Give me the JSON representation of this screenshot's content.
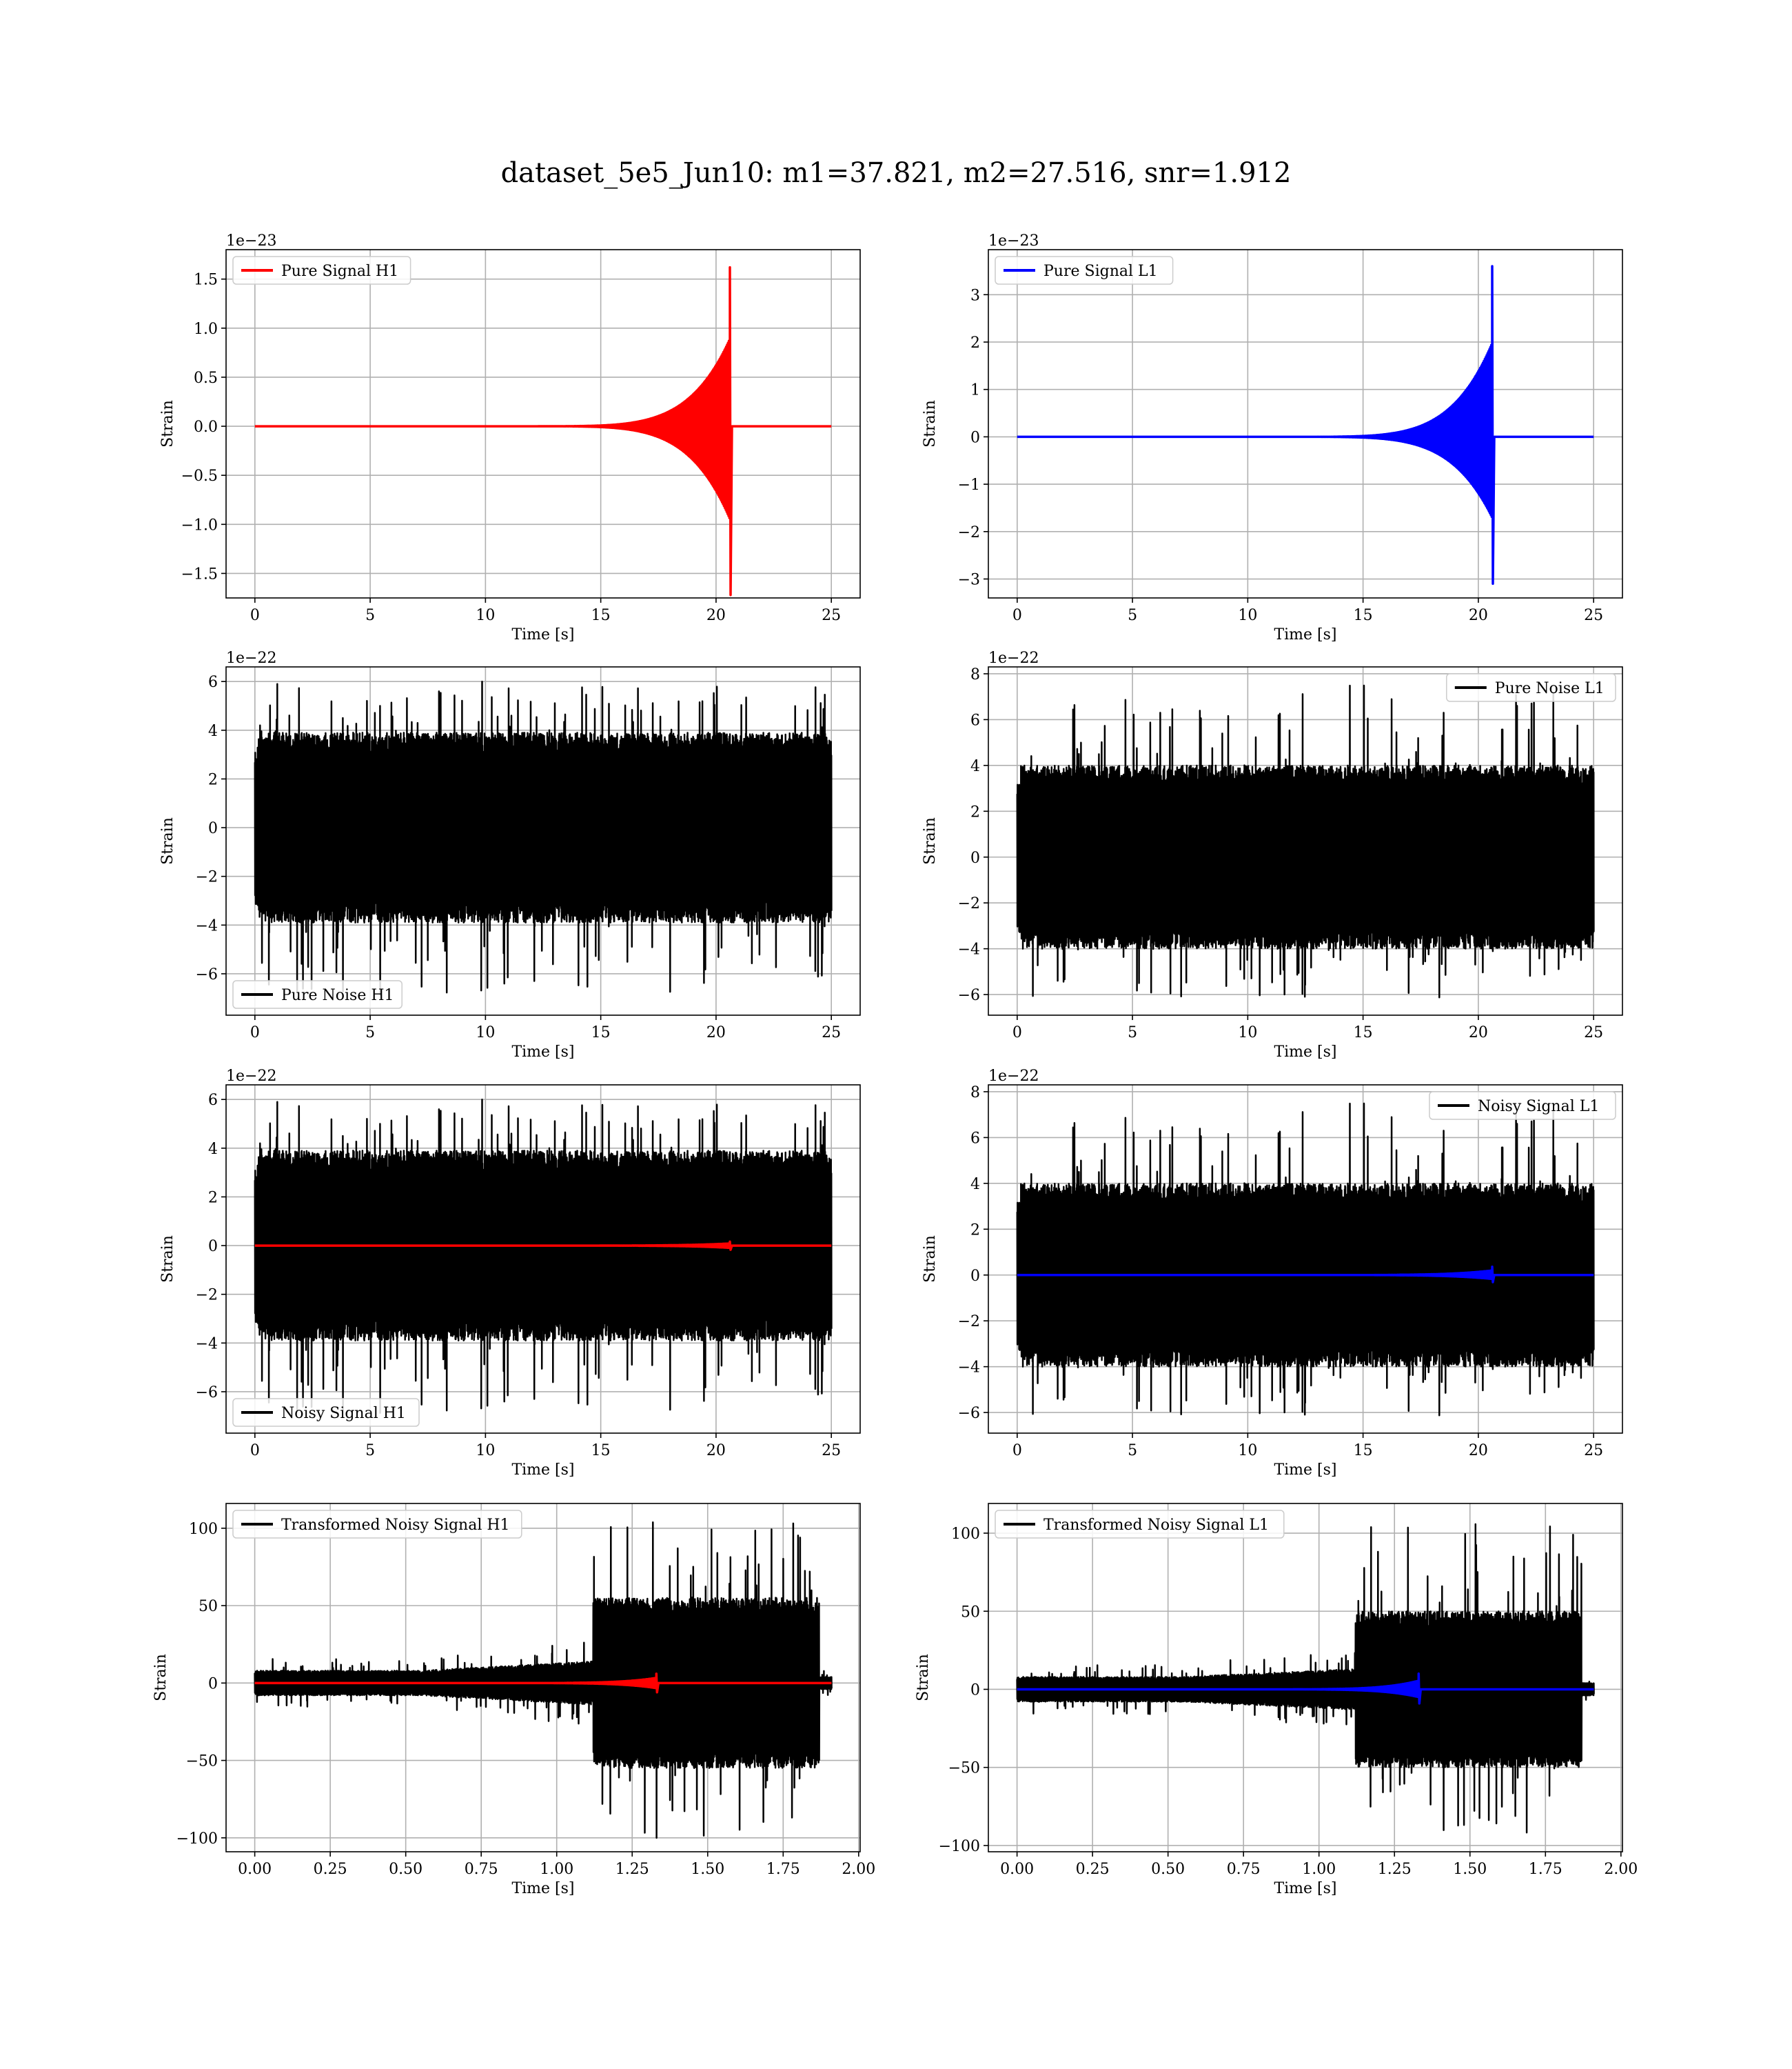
{
  "figure_title": "dataset_5e5_Jun10: m1=37.821, m2=27.516, snr=1.912",
  "colors": {
    "h1_signal": "#ff0000",
    "l1_signal": "#0000ff",
    "noise": "#000000",
    "grid": "#b0b0b0",
    "legend_border": "#cccccc"
  },
  "chart_data": [
    {
      "type": "line",
      "legend": "Pure Signal H1",
      "legend_position": "upper-left",
      "xlabel": "Time [s]",
      "ylabel": "Strain",
      "offset_text": "1e−23",
      "xlim": [
        -1.25,
        26.25
      ],
      "ylim": [
        -1.75,
        1.8
      ],
      "xticks": [
        0,
        5,
        10,
        15,
        20,
        25
      ],
      "xtick_labels": [
        "0",
        "5",
        "10",
        "15",
        "20",
        "25"
      ],
      "yticks": [
        -1.5,
        -1.0,
        -0.5,
        0.0,
        0.5,
        1.0,
        1.5
      ],
      "ytick_labels": [
        "−1.5",
        "−1.0",
        "−0.5",
        "0.0",
        "0.5",
        "1.0",
        "1.5"
      ],
      "series": [
        {
          "color": "h1_signal",
          "kind": "chirp",
          "x_start": 0,
          "x_end": 25,
          "merger": 20.6,
          "peak_pos": 1.62,
          "peak_neg": -1.72
        }
      ]
    },
    {
      "type": "line",
      "legend": "Pure Signal L1",
      "legend_position": "upper-left",
      "xlabel": "Time [s]",
      "ylabel": "Strain",
      "offset_text": "1e−23",
      "xlim": [
        -1.25,
        26.25
      ],
      "ylim": [
        -3.4,
        3.95
      ],
      "xticks": [
        0,
        5,
        10,
        15,
        20,
        25
      ],
      "xtick_labels": [
        "0",
        "5",
        "10",
        "15",
        "20",
        "25"
      ],
      "yticks": [
        -3,
        -2,
        -1,
        0,
        1,
        2,
        3
      ],
      "ytick_labels": [
        "−3",
        "−2",
        "−1",
        "0",
        "1",
        "2",
        "3"
      ],
      "series": [
        {
          "color": "l1_signal",
          "kind": "chirp",
          "x_start": 0,
          "x_end": 25,
          "merger": 20.6,
          "peak_pos": 3.6,
          "peak_neg": -3.1
        }
      ]
    },
    {
      "type": "line",
      "legend": "Pure Noise H1",
      "legend_position": "lower-left",
      "xlabel": "Time [s]",
      "ylabel": "Strain",
      "offset_text": "1e−22",
      "xlim": [
        -1.25,
        26.25
      ],
      "ylim": [
        -7.7,
        6.6
      ],
      "xticks": [
        0,
        5,
        10,
        15,
        20,
        25
      ],
      "xtick_labels": [
        "0",
        "5",
        "10",
        "15",
        "20",
        "25"
      ],
      "yticks": [
        -6,
        -4,
        -2,
        0,
        2,
        4,
        6
      ],
      "ytick_labels": [
        "−6",
        "−4",
        "−2",
        "0",
        "2",
        "4",
        "6"
      ],
      "series": [
        {
          "color": "noise",
          "kind": "noise",
          "x_start": 0,
          "x_end": 25,
          "band": 3.9,
          "spike_max": 6.0,
          "spike_min": -6.9,
          "seed": 11
        }
      ]
    },
    {
      "type": "line",
      "legend": "Pure Noise L1",
      "legend_position": "upper-right",
      "xlabel": "Time [s]",
      "ylabel": "Strain",
      "offset_text": "1e−22",
      "xlim": [
        -1.25,
        26.25
      ],
      "ylim": [
        -6.9,
        8.3
      ],
      "xticks": [
        0,
        5,
        10,
        15,
        20,
        25
      ],
      "xtick_labels": [
        "0",
        "5",
        "10",
        "15",
        "20",
        "25"
      ],
      "yticks": [
        -6,
        -4,
        -2,
        0,
        2,
        4,
        6,
        8
      ],
      "ytick_labels": [
        "−6",
        "−4",
        "−2",
        "0",
        "2",
        "4",
        "6",
        "8"
      ],
      "series": [
        {
          "color": "noise",
          "kind": "noise",
          "x_start": 0,
          "x_end": 25,
          "band": 4.0,
          "spike_max": 7.5,
          "spike_min": -6.2,
          "seed": 23
        }
      ]
    },
    {
      "type": "line",
      "legend": "Noisy Signal H1",
      "legend_position": "lower-left",
      "xlabel": "Time [s]",
      "ylabel": "Strain",
      "offset_text": "1e−22",
      "xlim": [
        -1.25,
        26.25
      ],
      "ylim": [
        -7.7,
        6.6
      ],
      "xticks": [
        0,
        5,
        10,
        15,
        20,
        25
      ],
      "xtick_labels": [
        "0",
        "5",
        "10",
        "15",
        "20",
        "25"
      ],
      "yticks": [
        -6,
        -4,
        -2,
        0,
        2,
        4,
        6
      ],
      "ytick_labels": [
        "−6",
        "−4",
        "−2",
        "0",
        "2",
        "4",
        "6"
      ],
      "series": [
        {
          "color": "noise",
          "kind": "noise",
          "x_start": 0,
          "x_end": 25,
          "band": 3.9,
          "spike_max": 6.0,
          "spike_min": -6.9,
          "seed": 11
        },
        {
          "color": "h1_signal",
          "kind": "chirp",
          "x_start": 0,
          "x_end": 25,
          "merger": 20.6,
          "peak_pos": 0.16,
          "peak_neg": -0.17
        }
      ]
    },
    {
      "type": "line",
      "legend": "Noisy Signal L1",
      "legend_position": "upper-right",
      "xlabel": "Time [s]",
      "ylabel": "Strain",
      "offset_text": "1e−22",
      "xlim": [
        -1.25,
        26.25
      ],
      "ylim": [
        -6.9,
        8.3
      ],
      "xticks": [
        0,
        5,
        10,
        15,
        20,
        25
      ],
      "xtick_labels": [
        "0",
        "5",
        "10",
        "15",
        "20",
        "25"
      ],
      "yticks": [
        -6,
        -4,
        -2,
        0,
        2,
        4,
        6,
        8
      ],
      "ytick_labels": [
        "−6",
        "−4",
        "−2",
        "0",
        "2",
        "4",
        "6",
        "8"
      ],
      "series": [
        {
          "color": "noise",
          "kind": "noise",
          "x_start": 0,
          "x_end": 25,
          "band": 4.0,
          "spike_max": 7.5,
          "spike_min": -6.2,
          "seed": 23
        },
        {
          "color": "l1_signal",
          "kind": "chirp",
          "x_start": 0,
          "x_end": 25,
          "merger": 20.6,
          "peak_pos": 0.36,
          "peak_neg": -0.31
        }
      ]
    },
    {
      "type": "line",
      "legend": "Transformed Noisy Signal H1",
      "legend_position": "upper-left",
      "xlabel": "Time [s]",
      "ylabel": "Strain",
      "offset_text": "",
      "xlim": [
        -0.095,
        2.005
      ],
      "ylim": [
        -109,
        116
      ],
      "xticks": [
        0.0,
        0.25,
        0.5,
        0.75,
        1.0,
        1.25,
        1.5,
        1.75,
        2.0
      ],
      "xtick_labels": [
        "0.00",
        "0.25",
        "0.50",
        "0.75",
        "1.00",
        "1.25",
        "1.50",
        "1.75",
        "2.00"
      ],
      "yticks": [
        -100,
        -50,
        0,
        50,
        100
      ],
      "ytick_labels": [
        "−100",
        "−50",
        "0",
        "50",
        "100"
      ],
      "series": [
        {
          "color": "noise",
          "kind": "transformed",
          "x_start": 0,
          "x_end": 1.91,
          "low_band": 8,
          "mid_band": 14,
          "rise_at": 1.12,
          "high_band": 55,
          "spike_max": 105,
          "spike_min": -105,
          "cutoff": 1.87,
          "seed": 37
        },
        {
          "color": "h1_signal",
          "kind": "chirp",
          "x_start": 0,
          "x_end": 1.91,
          "merger": 1.33,
          "peak_pos": 6,
          "peak_neg": -6
        }
      ]
    },
    {
      "type": "line",
      "legend": "Transformed Noisy Signal L1",
      "legend_position": "upper-left",
      "xlabel": "Time [s]",
      "ylabel": "Strain",
      "offset_text": "",
      "xlim": [
        -0.095,
        2.005
      ],
      "ylim": [
        -104,
        119
      ],
      "xticks": [
        0.0,
        0.25,
        0.5,
        0.75,
        1.0,
        1.25,
        1.5,
        1.75,
        2.0
      ],
      "xtick_labels": [
        "0.00",
        "0.25",
        "0.50",
        "0.75",
        "1.00",
        "1.25",
        "1.50",
        "1.75",
        "2.00"
      ],
      "yticks": [
        -100,
        -50,
        0,
        50,
        100
      ],
      "ytick_labels": [
        "−100",
        "−50",
        "0",
        "50",
        "100"
      ],
      "series": [
        {
          "color": "noise",
          "kind": "transformed",
          "x_start": 0,
          "x_end": 1.91,
          "low_band": 8,
          "mid_band": 13,
          "rise_at": 1.12,
          "high_band": 50,
          "spike_max": 109,
          "spike_min": -96,
          "cutoff": 1.87,
          "seed": 53
        },
        {
          "color": "l1_signal",
          "kind": "chirp",
          "x_start": 0,
          "x_end": 1.91,
          "merger": 1.33,
          "peak_pos": 10,
          "peak_neg": -9
        }
      ]
    }
  ]
}
